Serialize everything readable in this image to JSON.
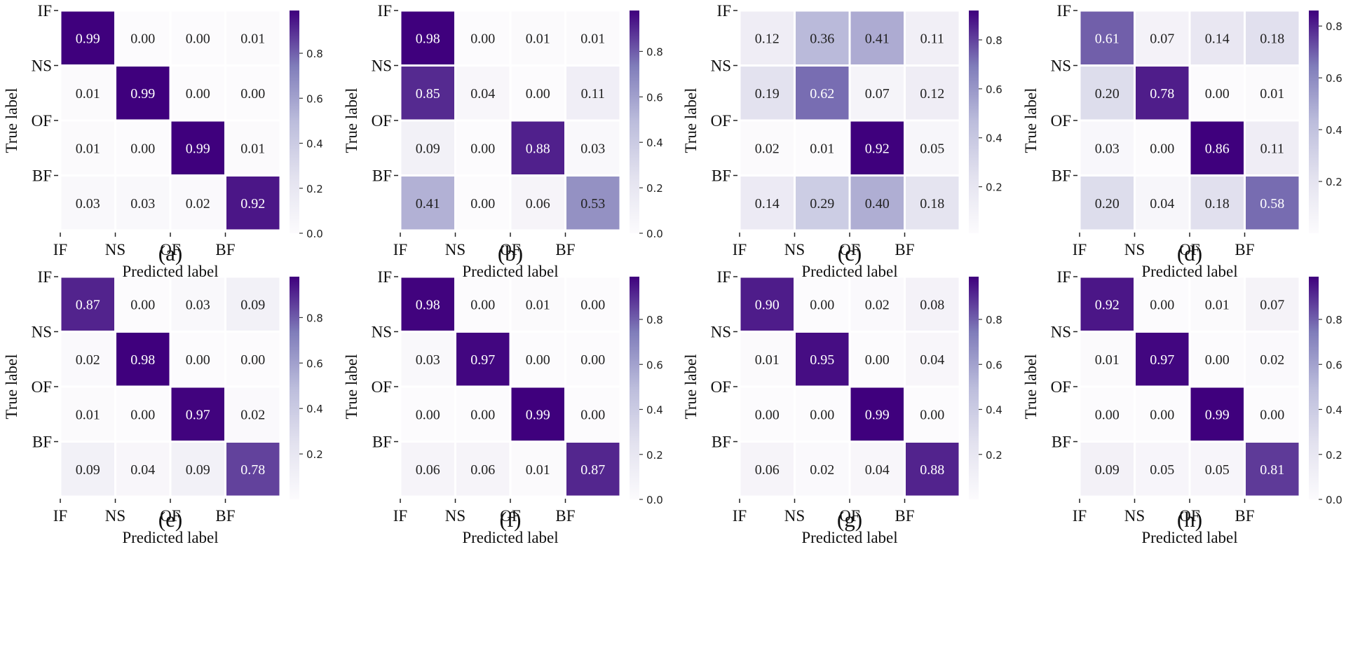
{
  "figure": {
    "panel_labels": [
      "(a)",
      "(b)",
      "(c)",
      "(d)",
      "(e)",
      "(f)",
      "(g)",
      "(h)"
    ]
  },
  "chart_data": [
    {
      "type": "heatmap",
      "panel": "(a)",
      "ylabel": "True label",
      "xlabel": "Predicted label",
      "row_labels": [
        "IF",
        "NS",
        "OF",
        "BF"
      ],
      "col_labels": [
        "IF",
        "NS",
        "OF",
        "BF"
      ],
      "values": [
        [
          0.99,
          0.0,
          0.0,
          0.01
        ],
        [
          0.01,
          0.99,
          0.0,
          0.0
        ],
        [
          0.01,
          0.0,
          0.99,
          0.01
        ],
        [
          0.03,
          0.03,
          0.02,
          0.92
        ]
      ],
      "colorbar": {
        "min": 0.0,
        "max": 0.99,
        "ticks": [
          "0.0",
          "0.2",
          "0.4",
          "0.6",
          "0.8"
        ]
      }
    },
    {
      "type": "heatmap",
      "panel": "(b)",
      "ylabel": "True label",
      "xlabel": "Predicted label",
      "row_labels": [
        "IF",
        "NS",
        "OF",
        "BF"
      ],
      "col_labels": [
        "IF",
        "NS",
        "OF",
        "BF"
      ],
      "values": [
        [
          0.98,
          0.0,
          0.01,
          0.01
        ],
        [
          0.85,
          0.04,
          0.0,
          0.11
        ],
        [
          0.09,
          0.0,
          0.88,
          0.03
        ],
        [
          0.41,
          0.0,
          0.06,
          0.53
        ]
      ],
      "colorbar": {
        "min": 0.0,
        "max": 0.98,
        "ticks": [
          "0.0",
          "0.2",
          "0.4",
          "0.6",
          "0.8"
        ]
      }
    },
    {
      "type": "heatmap",
      "panel": "(c)",
      "ylabel": "True label",
      "xlabel": "Predicted label",
      "row_labels": [
        "IF",
        "NS",
        "OF",
        "BF"
      ],
      "col_labels": [
        "IF",
        "NS",
        "OF",
        "BF"
      ],
      "values": [
        [
          0.12,
          0.36,
          0.41,
          0.11
        ],
        [
          0.19,
          0.62,
          0.07,
          0.12
        ],
        [
          0.02,
          0.01,
          0.92,
          0.05
        ],
        [
          0.14,
          0.29,
          0.4,
          0.18
        ]
      ],
      "colorbar": {
        "min": 0.01,
        "max": 0.92,
        "ticks": [
          "0.2",
          "0.4",
          "0.6",
          "0.8"
        ]
      }
    },
    {
      "type": "heatmap",
      "panel": "(d)",
      "ylabel": "True label",
      "xlabel": "Predicted label",
      "row_labels": [
        "IF",
        "NS",
        "OF",
        "BF"
      ],
      "col_labels": [
        "IF",
        "NS",
        "OF",
        "BF"
      ],
      "values": [
        [
          0.61,
          0.07,
          0.14,
          0.18
        ],
        [
          0.2,
          0.78,
          0.0,
          0.01
        ],
        [
          0.03,
          0.0,
          0.86,
          0.11
        ],
        [
          0.2,
          0.04,
          0.18,
          0.58
        ]
      ],
      "colorbar": {
        "min": 0.0,
        "max": 0.86,
        "ticks": [
          "0.2",
          "0.4",
          "0.6",
          "0.8"
        ]
      }
    },
    {
      "type": "heatmap",
      "panel": "(e)",
      "ylabel": "True label",
      "xlabel": "Predicted label",
      "row_labels": [
        "IF",
        "NS",
        "OF",
        "BF"
      ],
      "col_labels": [
        "IF",
        "NS",
        "OF",
        "BF"
      ],
      "values": [
        [
          0.87,
          0.0,
          0.03,
          0.09
        ],
        [
          0.02,
          0.98,
          0.0,
          0.0
        ],
        [
          0.01,
          0.0,
          0.97,
          0.02
        ],
        [
          0.09,
          0.04,
          0.09,
          0.78
        ]
      ],
      "colorbar": {
        "min": 0.0,
        "max": 0.98,
        "ticks": [
          "0.2",
          "0.4",
          "0.6",
          "0.8"
        ]
      }
    },
    {
      "type": "heatmap",
      "panel": "(f)",
      "ylabel": "True label",
      "xlabel": "Predicted label",
      "row_labels": [
        "IF",
        "NS",
        "OF",
        "BF"
      ],
      "col_labels": [
        "IF",
        "NS",
        "OF",
        "BF"
      ],
      "values": [
        [
          0.98,
          0.0,
          0.01,
          0.0
        ],
        [
          0.03,
          0.97,
          0.0,
          0.0
        ],
        [
          0.0,
          0.0,
          0.99,
          0.0
        ],
        [
          0.06,
          0.06,
          0.01,
          0.87
        ]
      ],
      "colorbar": {
        "min": 0.0,
        "max": 0.99,
        "ticks": [
          "0.0",
          "0.2",
          "0.4",
          "0.6",
          "0.8"
        ]
      }
    },
    {
      "type": "heatmap",
      "panel": "(g)",
      "ylabel": "True label",
      "xlabel": "Predicted label",
      "row_labels": [
        "IF",
        "NS",
        "OF",
        "BF"
      ],
      "col_labels": [
        "IF",
        "NS",
        "OF",
        "BF"
      ],
      "values": [
        [
          0.9,
          0.0,
          0.02,
          0.08
        ],
        [
          0.01,
          0.95,
          0.0,
          0.04
        ],
        [
          0.0,
          0.0,
          0.99,
          0.0
        ],
        [
          0.06,
          0.02,
          0.04,
          0.88
        ]
      ],
      "colorbar": {
        "min": 0.0,
        "max": 0.99,
        "ticks": [
          "0.2",
          "0.4",
          "0.6",
          "0.8"
        ]
      }
    },
    {
      "type": "heatmap",
      "panel": "(h)",
      "ylabel": "True label",
      "xlabel": "Predicted label",
      "row_labels": [
        "IF",
        "NS",
        "OF",
        "BF"
      ],
      "col_labels": [
        "IF",
        "NS",
        "OF",
        "BF"
      ],
      "values": [
        [
          0.92,
          0.0,
          0.01,
          0.07
        ],
        [
          0.01,
          0.97,
          0.0,
          0.02
        ],
        [
          0.0,
          0.0,
          0.99,
          0.0
        ],
        [
          0.09,
          0.05,
          0.05,
          0.81
        ]
      ],
      "colorbar": {
        "min": 0.0,
        "max": 0.99,
        "ticks": [
          "0.0",
          "0.2",
          "0.4",
          "0.6",
          "0.8"
        ]
      }
    }
  ]
}
